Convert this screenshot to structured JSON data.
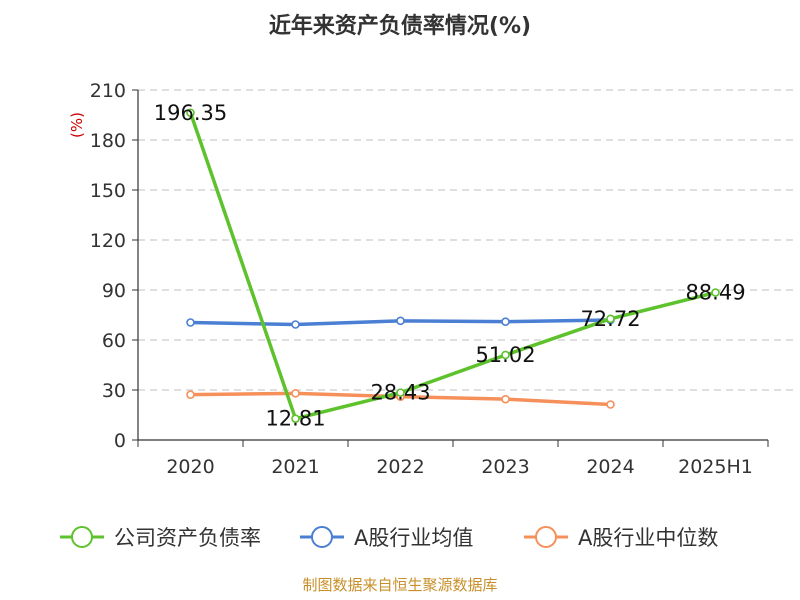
{
  "chart_data": {
    "type": "line",
    "title": "近年来资产负债率情况(%)",
    "ylabel": "(%)",
    "xlabel": "",
    "categories": [
      "2020",
      "2021",
      "2022",
      "2023",
      "2024",
      "2025H1"
    ],
    "ylim": [
      0,
      210
    ],
    "yticks": [
      0,
      30,
      60,
      90,
      120,
      150,
      180,
      210
    ],
    "grid": true,
    "legend_position": "bottom",
    "series": [
      {
        "name": "公司资产负债率",
        "color": "#5dc22c",
        "values": [
          196.35,
          12.81,
          28.43,
          51.02,
          72.72,
          88.49
        ],
        "labels": [
          "196.35",
          "12.81",
          "28.43",
          "51.02",
          "72.72",
          "88.49"
        ]
      },
      {
        "name": "A股行业均值",
        "color": "#4a7fd4",
        "values": [
          70.5,
          69.3,
          71.5,
          71.0,
          72.0,
          null
        ]
      },
      {
        "name": "A股行业中位数",
        "color": "#f5905a",
        "values": [
          27.2,
          28.0,
          26.0,
          24.5,
          21.3,
          null
        ]
      }
    ],
    "source": "制图数据来自恒生聚源数据库",
    "source_color": "#c8902a"
  }
}
